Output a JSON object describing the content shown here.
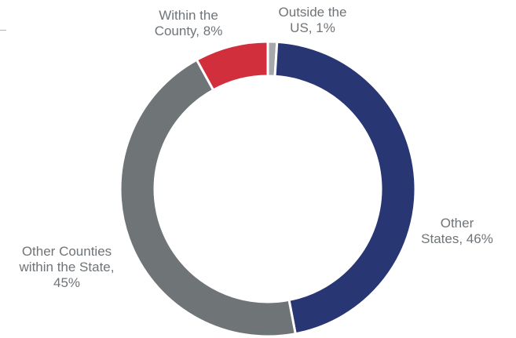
{
  "chart_data": {
    "type": "pie",
    "donut": true,
    "title": "",
    "legend": "none",
    "slices": [
      {
        "label": "Outside the\nUS, 1%",
        "category": "Outside the US",
        "value": 1,
        "color": "#a6a8ab"
      },
      {
        "label": "Other\nStates, 46%",
        "category": "Other States",
        "value": 46,
        "color": "#283673"
      },
      {
        "label": "Other Counties\nwithin the State,\n45%",
        "category": "Other Counties within the State",
        "value": 45,
        "color": "#6f7476"
      },
      {
        "label": "Within the\nCounty, 8%",
        "category": "Within the County",
        "value": 8,
        "color": "#d22f3c"
      }
    ]
  }
}
